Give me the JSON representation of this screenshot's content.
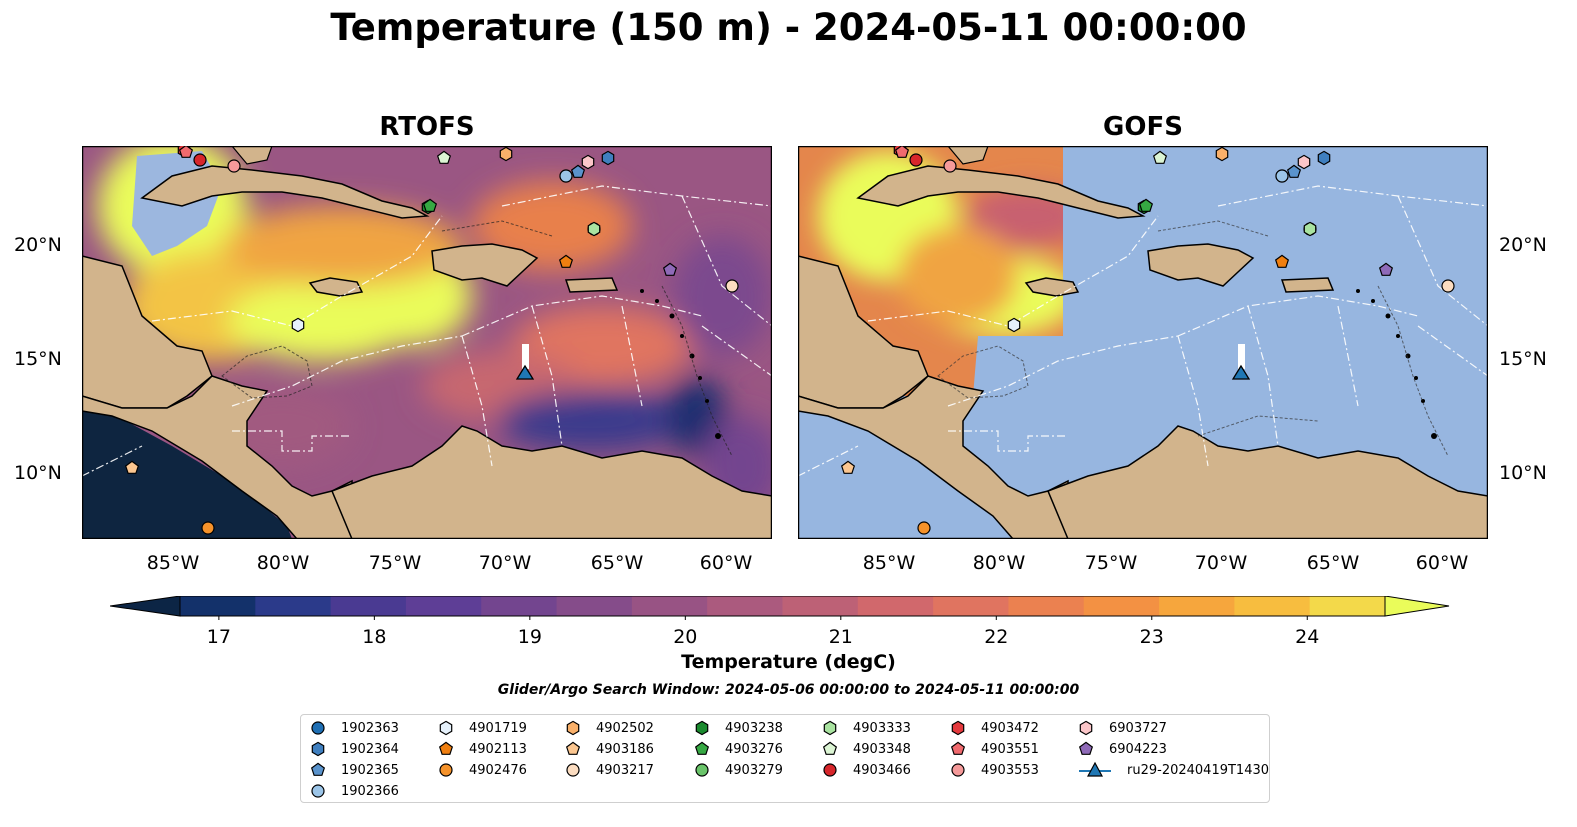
{
  "title": "Temperature (150 m) - 2024-05-11 00:00:00",
  "panels": [
    {
      "id": "rtofs",
      "title": "RTOFS"
    },
    {
      "id": "gofs",
      "title": "GOFS"
    }
  ],
  "lat_labels": [
    "20°N",
    "15°N",
    "10°N"
  ],
  "lon_labels": [
    "85°W",
    "80°W",
    "75°W",
    "70°W",
    "65°W",
    "60°W"
  ],
  "colorbar": {
    "label": "Temperature (degC)",
    "ticks": [
      "17",
      "18",
      "19",
      "20",
      "21",
      "22",
      "23",
      "24"
    ],
    "range": [
      16.75,
      24.5
    ],
    "colors": [
      "#0c2545",
      "#13316a",
      "#2b3a8a",
      "#4a3a92",
      "#5e3e96",
      "#73458f",
      "#854c8a",
      "#985384",
      "#ab5a7e",
      "#bd6176",
      "#d1686c",
      "#e07460",
      "#eb8150",
      "#f39143",
      "#f6a63d",
      "#f7bd3f",
      "#f3d94a",
      "#eafc5a"
    ],
    "background_land": "#d2b48c",
    "background_ocean_masked": "#97b6e0"
  },
  "subtitle": "Glider/Argo Search Window: 2024-05-06 00:00:00 to 2024-05-11 00:00:00",
  "legend": [
    {
      "label": "1902363",
      "marker": "circle",
      "color": "#1f6fb4"
    },
    {
      "label": "1902364",
      "marker": "hexagon",
      "color": "#3f7fbf"
    },
    {
      "label": "1902365",
      "marker": "pentagon",
      "color": "#5a93cc"
    },
    {
      "label": "1902366",
      "marker": "circle",
      "color": "#9cc5e8"
    },
    {
      "label": "4901719",
      "marker": "hexagon",
      "color": "#e6f1fb"
    },
    {
      "label": "4902113",
      "marker": "pentagon",
      "color": "#f07f10"
    },
    {
      "label": "4902476",
      "marker": "circle",
      "color": "#f5922a"
    },
    {
      "label": "4902502",
      "marker": "hexagon",
      "color": "#f9b06a"
    },
    {
      "label": "4903186",
      "marker": "pentagon",
      "color": "#fbc690"
    },
    {
      "label": "4903217",
      "marker": "circle",
      "color": "#fbdcc0"
    },
    {
      "label": "4903238",
      "marker": "hexagon",
      "color": "#1a8a2e"
    },
    {
      "label": "4903276",
      "marker": "pentagon",
      "color": "#36a843"
    },
    {
      "label": "4903279",
      "marker": "circle",
      "color": "#6ac46a"
    },
    {
      "label": "4903333",
      "marker": "hexagon",
      "color": "#a9e3a0"
    },
    {
      "label": "4903348",
      "marker": "pentagon",
      "color": "#dcf5d4"
    },
    {
      "label": "4903466",
      "marker": "circle",
      "color": "#d7262b"
    },
    {
      "label": "4903472",
      "marker": "hexagon",
      "color": "#e4393d"
    },
    {
      "label": "4903551",
      "marker": "pentagon",
      "color": "#f06a6e"
    },
    {
      "label": "4903553",
      "marker": "circle",
      "color": "#f59a9a"
    },
    {
      "label": "6903727",
      "marker": "hexagon",
      "color": "#fbc6c9"
    },
    {
      "label": "6904223",
      "marker": "pentagon",
      "color": "#8f6ab8"
    },
    {
      "label": "ru29-20240419T1430",
      "marker": "triangle-line",
      "color": "#1f77b4"
    }
  ]
}
